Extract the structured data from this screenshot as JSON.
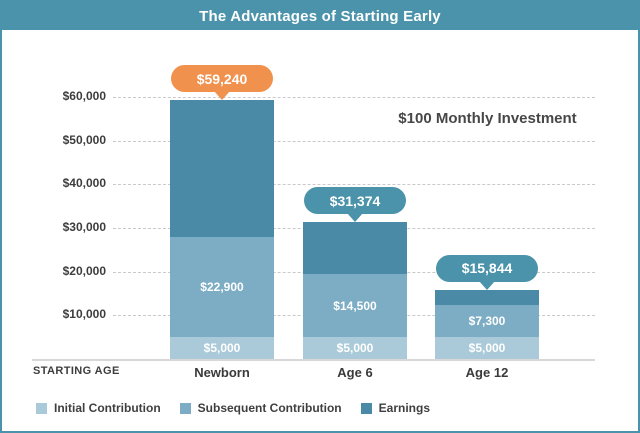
{
  "title": "The Advantages of Starting Early",
  "subtitle": "$100 Monthly Investment",
  "axis": {
    "starting_age_label": "STARTING AGE",
    "y_ticks": [
      "$60,000",
      "$50,000",
      "$40,000",
      "$30,000",
      "$20,000",
      "$10,000"
    ]
  },
  "colors": {
    "frame_teal": "#4b93aa",
    "callout_orange": "#f0914d",
    "callout_teal": "#4b93aa",
    "initial": "#aac9d9",
    "subsequent": "#7cadc4",
    "earnings": "#4a8aa7",
    "text_dark": "#3d3d3d",
    "gridline": "#c9c9c9"
  },
  "chart_data": {
    "type": "bar",
    "stacked": true,
    "title": "The Advantages of Starting Early",
    "annotation": "$100 Monthly Investment",
    "xlabel": "STARTING AGE",
    "ylabel": "",
    "ylim": [
      0,
      60000
    ],
    "y_tick_step": 10000,
    "grid": "horizontal-dashed",
    "legend_position": "bottom",
    "categories": [
      "Newborn",
      "Age 6",
      "Age 12"
    ],
    "series": [
      {
        "name": "Initial Contribution",
        "values": [
          5000,
          5000,
          5000
        ],
        "labels": [
          "$5,000",
          "$5,000",
          "$5,000"
        ]
      },
      {
        "name": "Subsequent Contribution",
        "values": [
          22900,
          14500,
          7300
        ],
        "labels": [
          "$22,900",
          "$14,500",
          "$7,300"
        ]
      },
      {
        "name": "Earnings",
        "values": [
          31340,
          11874,
          3544
        ],
        "labels": [
          "",
          "",
          ""
        ]
      }
    ],
    "totals": [
      59240,
      31374,
      15844
    ],
    "total_labels": [
      "$59,240",
      "$31,374",
      "$15,844"
    ]
  },
  "legend": {
    "items": [
      {
        "label": "Initial Contribution",
        "color": "#aac9d9"
      },
      {
        "label": "Subsequent Contribution",
        "color": "#7cadc4"
      },
      {
        "label": "Earnings",
        "color": "#4a8aa7"
      }
    ]
  }
}
